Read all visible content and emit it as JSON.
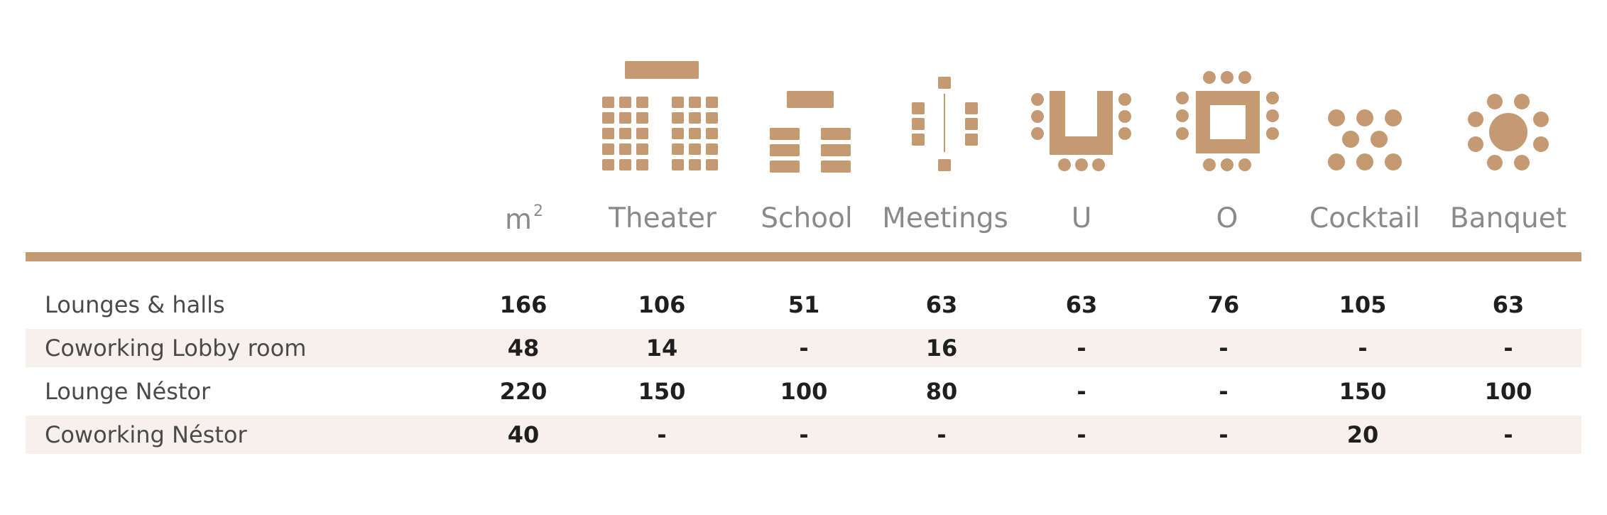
{
  "colors": {
    "accent": "#c49a73",
    "header_text": "#8a8a8a",
    "row_shade": "#f6f1ec"
  },
  "columns": [
    {
      "key": "m2",
      "label": "m",
      "sup": "2",
      "icon": "area-icon"
    },
    {
      "key": "theater",
      "label": "Theater",
      "icon": "theater-layout-icon"
    },
    {
      "key": "school",
      "label": "School",
      "icon": "school-layout-icon"
    },
    {
      "key": "meetings",
      "label": "Meetings",
      "icon": "meetings-layout-icon"
    },
    {
      "key": "u",
      "label": "U",
      "icon": "u-shape-layout-icon"
    },
    {
      "key": "o",
      "label": "O",
      "icon": "o-shape-layout-icon"
    },
    {
      "key": "cocktail",
      "label": "Cocktail",
      "icon": "cocktail-layout-icon"
    },
    {
      "key": "banquet",
      "label": "Banquet",
      "icon": "banquet-layout-icon"
    }
  ],
  "rows": [
    {
      "name": "Lounges & halls",
      "values": [
        "166",
        "106",
        "51",
        "63",
        "63",
        "76",
        "105",
        "63"
      ]
    },
    {
      "name": "Coworking Lobby room",
      "values": [
        "48",
        "14",
        "-",
        "16",
        "-",
        "-",
        "-",
        "-"
      ]
    },
    {
      "name": "Lounge Néstor",
      "values": [
        "220",
        "150",
        "100",
        "80",
        "-",
        "-",
        "150",
        "100"
      ]
    },
    {
      "name": "Coworking Néstor",
      "values": [
        "40",
        "-",
        "-",
        "-",
        "-",
        "-",
        "20",
        "-"
      ]
    }
  ]
}
